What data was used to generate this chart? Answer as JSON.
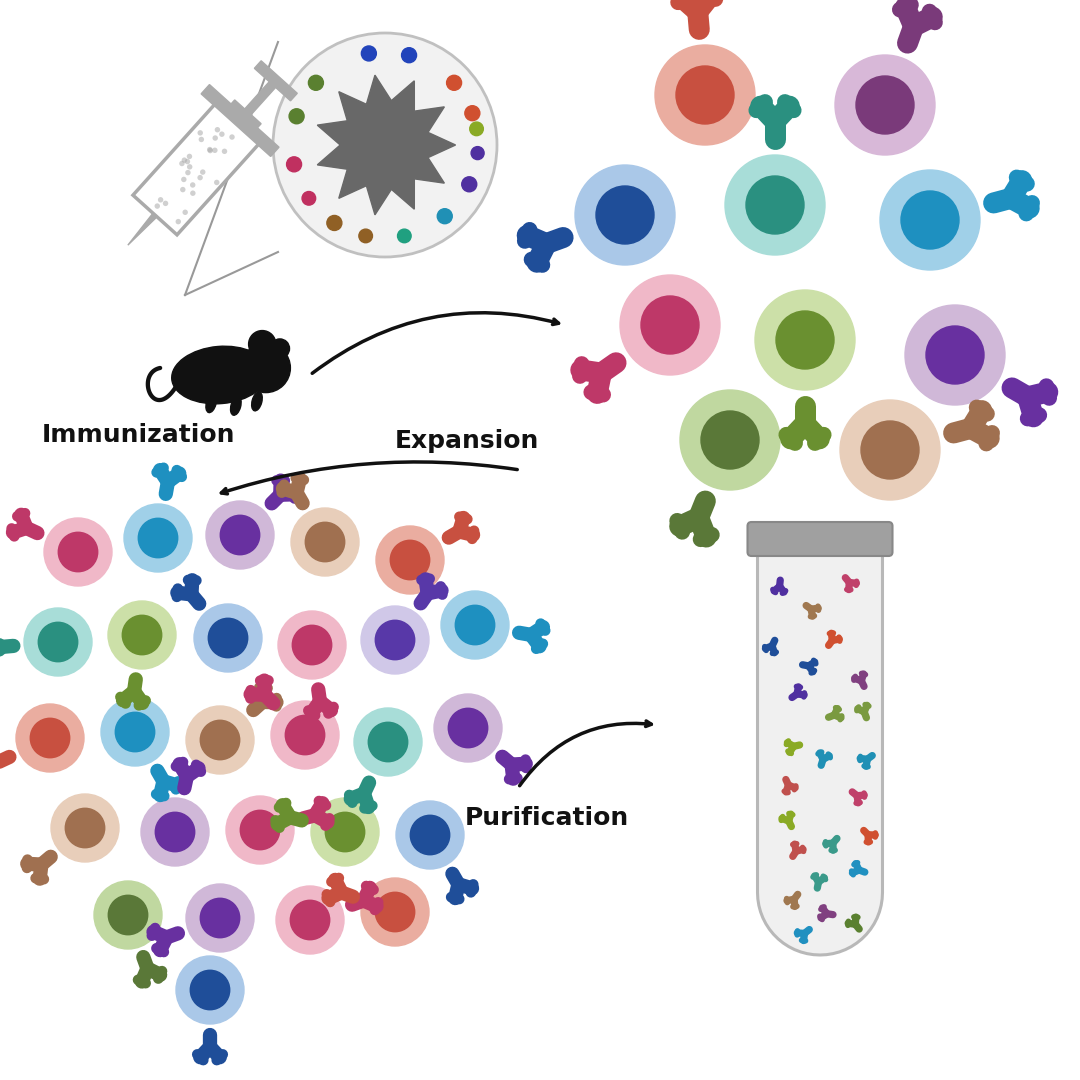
{
  "background_color": "#ffffff",
  "label_immunization": "Immunization",
  "label_expansion": "Expansion",
  "label_purification": "Purification",
  "label_fontsize": 16,
  "syringe_color": "#aaaaaa",
  "mouse_color": "#111111",
  "arrow_color": "#111111"
}
